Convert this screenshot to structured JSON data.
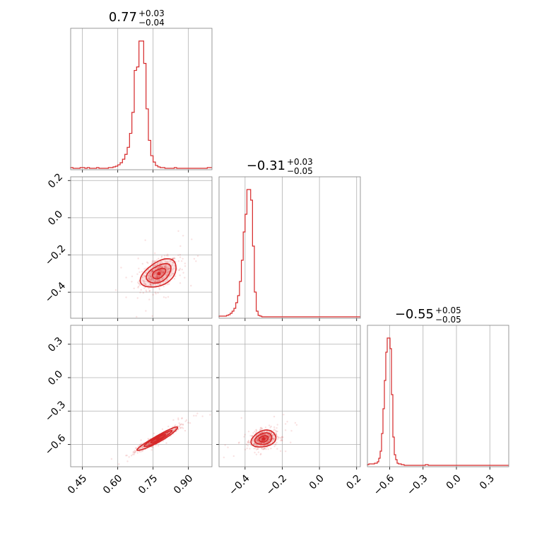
{
  "chart_data": {
    "type": "corner",
    "color": "#d62728",
    "grid": true,
    "parameters": [
      {
        "index": 0,
        "range": [
          0.4,
          1.0
        ],
        "ticks": [
          "0.45",
          "0.60",
          "0.75",
          "0.90"
        ],
        "tick_values": [
          0.45,
          0.6,
          0.75,
          0.9
        ],
        "title": {
          "median": "0.77",
          "plus": "+0.03",
          "minus": "−0.04"
        }
      },
      {
        "index": 1,
        "range": [
          -0.54,
          0.22
        ],
        "ticks": [
          "−0.4",
          "−0.2",
          "0.0",
          "0.2"
        ],
        "tick_values": [
          -0.4,
          -0.2,
          0.0,
          0.2
        ],
        "title": {
          "median": "−0.31",
          "plus": "+0.03",
          "minus": "−0.05"
        }
      },
      {
        "index": 2,
        "range": [
          -0.8,
          0.47
        ],
        "ticks": [
          "−0.6",
          "−0.3",
          "0.0",
          "0.3"
        ],
        "tick_values": [
          -0.6,
          -0.3,
          0.0,
          0.3
        ],
        "title": {
          "median": "−0.55",
          "plus": "+0.05",
          "minus": "−0.05"
        }
      }
    ],
    "histograms": [
      {
        "param": 0,
        "bin_start": 0.4,
        "bin_width": 0.01,
        "counts": [
          1,
          0,
          0,
          0,
          1,
          1,
          0,
          1,
          0,
          0,
          0,
          1,
          0,
          0,
          0,
          0,
          1,
          1,
          2,
          3,
          5,
          8,
          13,
          20,
          30,
          50,
          80,
          140,
          145,
          182,
          182,
          150,
          85,
          40,
          18,
          9,
          4,
          2,
          1,
          1,
          0,
          0,
          0,
          0,
          1,
          0,
          0,
          0,
          0,
          0,
          0,
          0,
          0,
          0,
          0,
          0,
          0,
          0,
          1,
          1
        ]
      },
      {
        "param": 1,
        "bin_start": -0.54,
        "bin_width": 0.01,
        "counts": [
          1,
          1,
          1,
          1,
          2,
          3,
          5,
          8,
          12,
          20,
          30,
          50,
          80,
          120,
          145,
          180,
          180,
          165,
          100,
          35,
          8,
          2,
          1,
          0,
          0,
          0,
          0,
          0,
          0,
          0,
          0,
          0,
          0,
          0,
          0,
          0,
          0,
          0,
          0,
          0,
          0,
          0,
          0,
          0,
          0,
          0,
          0,
          0,
          0,
          0,
          0,
          0,
          0,
          0,
          0,
          0,
          0,
          0,
          0,
          0,
          0,
          0,
          0,
          0,
          0,
          0,
          0,
          0,
          0,
          0,
          0,
          0,
          0,
          0,
          0,
          0
        ]
      },
      {
        "param": 2,
        "bin_start": -0.8,
        "bin_width": 0.0127,
        "counts": [
          1,
          2,
          2,
          2,
          2,
          3,
          3,
          5,
          10,
          20,
          45,
          80,
          120,
          160,
          180,
          180,
          165,
          100,
          40,
          15,
          8,
          3,
          2,
          2,
          1,
          1,
          0,
          0,
          0,
          0,
          0,
          0,
          0,
          0,
          0,
          0,
          0,
          0,
          0,
          0,
          0,
          1,
          1,
          0,
          0,
          0,
          0,
          0,
          0,
          0,
          0,
          0,
          0,
          0,
          0,
          0,
          0,
          0,
          0,
          0,
          0,
          0,
          0,
          0,
          0,
          0,
          0,
          0,
          0,
          0,
          0,
          0,
          0,
          0,
          0,
          0,
          0,
          0,
          0,
          0,
          0,
          0,
          0,
          0,
          0,
          0,
          0,
          0,
          0,
          0,
          0,
          0,
          0,
          0,
          0,
          0,
          0,
          0,
          0,
          0
        ]
      }
    ],
    "pairs": [
      {
        "x_param": 0,
        "y_param": 1,
        "center": [
          0.775,
          -0.3
        ],
        "sigma": [
          0.04,
          0.04
        ],
        "rho": 0.45,
        "levels": [
          0.7,
          1.3,
          1.9
        ]
      },
      {
        "x_param": 0,
        "y_param": 2,
        "center": [
          0.77,
          -0.55
        ],
        "sigma": [
          0.045,
          0.055
        ],
        "rho": 0.95,
        "levels": [
          0.7,
          1.3,
          1.9
        ]
      },
      {
        "x_param": 1,
        "y_param": 2,
        "center": [
          -0.3,
          -0.55
        ],
        "sigma": [
          0.035,
          0.04
        ],
        "rho": 0.25,
        "levels": [
          0.7,
          1.3,
          1.9
        ]
      }
    ]
  }
}
